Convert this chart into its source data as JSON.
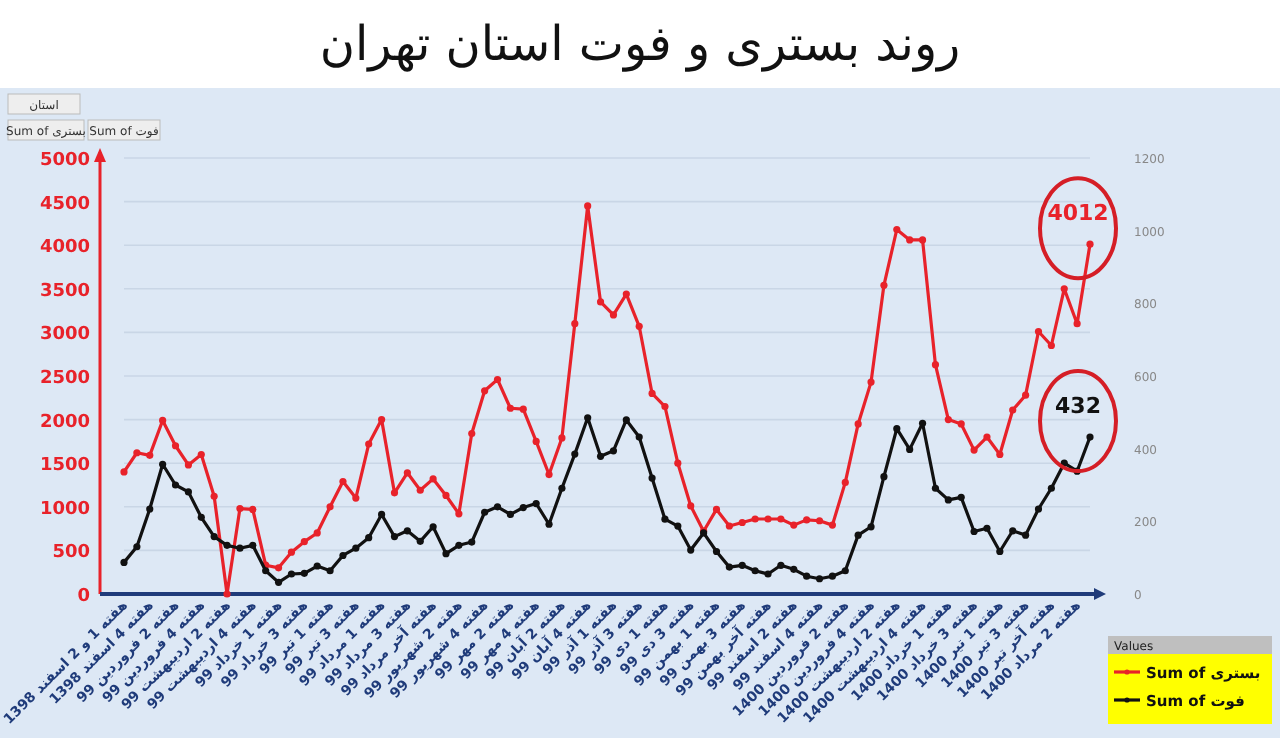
{
  "chart_data": {
    "type": "line",
    "title": "روند بستری و فوت استان تهران",
    "categories": [
      "هفته 1 و 2 اسفند 1398",
      null,
      "هفته 4 اسفند 1398",
      null,
      "هفته 2 فروردین 99",
      null,
      "هفته 4 فروردین 99",
      null,
      "هفته 2 اردیبهشت 99",
      null,
      "هفته 4 اردیبهشت 99",
      null,
      "هفته 1 خرداد 99",
      null,
      "هفته 3 خرداد 99",
      null,
      "هفته 1 تیر 99",
      null,
      "هفته 3 تیر 99",
      null,
      "هفته 1 مرداد 99",
      null,
      "هفته 3 مرداد 99",
      null,
      "هفته آخر مرداد 99",
      null,
      "هفته 2 شهریور 99",
      null,
      "هفته 4 شهریور 99",
      null,
      "هفته 2 مهر 99",
      null,
      "هفته 4 مهر 99",
      null,
      "هفته 2 آبان 99",
      null,
      "هفته 4 آبان 99",
      null,
      "هفته 1 آذر 99",
      null,
      "هفته 3 آذر 99",
      null,
      "هفته 1 دی 99",
      null,
      "هفته 3 دی 99",
      null,
      "هفته 1 بهمن 99",
      null,
      "هفته 3 بهمن 99",
      null,
      "هفته آخر بهمن 99",
      null,
      "هفته 2 اسفند 99",
      null,
      "هفته 4 اسفند 99",
      null,
      "هفته 2 فروردین 1400",
      null,
      "هفته 4 فروردین 1400",
      null,
      "هفته 2 اردیبهشت 1400",
      null,
      "هفته 4 اردیبهشت 1400",
      null,
      "هفته 1 خرداد 1400",
      null,
      "هفته 3 خرداد 1400",
      null,
      "هفته 1 تیر 1400",
      null,
      "هفته 3 تیر 1400",
      null,
      "هفته آخر تیر 1400",
      null,
      "هفته 2 مرداد 1400",
      null
    ],
    "series": [
      {
        "name": "Sum of بستری",
        "color": "#e8222a",
        "values": [
          1400,
          1620,
          1590,
          1990,
          1700,
          1480,
          1600,
          1120,
          0,
          980,
          970,
          330,
          300,
          480,
          600,
          700,
          1000,
          1290,
          1100,
          1720,
          2000,
          1160,
          1390,
          1190,
          1320,
          1130,
          920,
          1840,
          2330,
          2460,
          2130,
          2120,
          1750,
          1370,
          1790,
          3100,
          4450,
          3350,
          3200,
          3440,
          3070,
          2300,
          2150,
          1500,
          1010,
          720,
          970,
          780,
          820,
          860,
          860,
          860,
          790,
          850,
          840,
          790,
          1280,
          1950,
          2430,
          3540,
          4180,
          4060,
          4060,
          2630,
          2000,
          1950,
          1650,
          1800,
          1600,
          2110,
          2280,
          3010,
          2850,
          3500,
          3100,
          4012
        ]
      },
      {
        "name": "Sum of فوت",
        "color": "#111111",
        "axis": "y2",
        "values": [
          87,
          130,
          234,
          357,
          300,
          281,
          211,
          158,
          134,
          126,
          134,
          64,
          32,
          55,
          57,
          77,
          64,
          106,
          126,
          155,
          219,
          158,
          174,
          145,
          185,
          111,
          134,
          143,
          225,
          240,
          219,
          238,
          249,
          192,
          291,
          385,
          485,
          379,
          394,
          479,
          432,
          319,
          206,
          187,
          121,
          168,
          117,
          74,
          79,
          64,
          55,
          79,
          68,
          49,
          42,
          49,
          64,
          162,
          185,
          323,
          455,
          398,
          470,
          291,
          259,
          266,
          172,
          181,
          117,
          174,
          162,
          234,
          291,
          360,
          338,
          432
        ]
      }
    ],
    "ylim": [
      0,
      5000
    ],
    "yticks": [
      0,
      500,
      1000,
      1500,
      2000,
      2500,
      3000,
      3500,
      4000,
      4500,
      5000
    ],
    "y2lim": [
      0,
      1200
    ],
    "y2ticks": [
      0,
      200,
      400,
      600,
      800,
      1000,
      1200
    ],
    "grid": "y",
    "marker": "circle",
    "legend": "bottom right",
    "legend_title": "Values",
    "annotations": [
      "استان",
      "Sum of بستری",
      "Sum of فوت",
      "4012",
      "432"
    ]
  }
}
